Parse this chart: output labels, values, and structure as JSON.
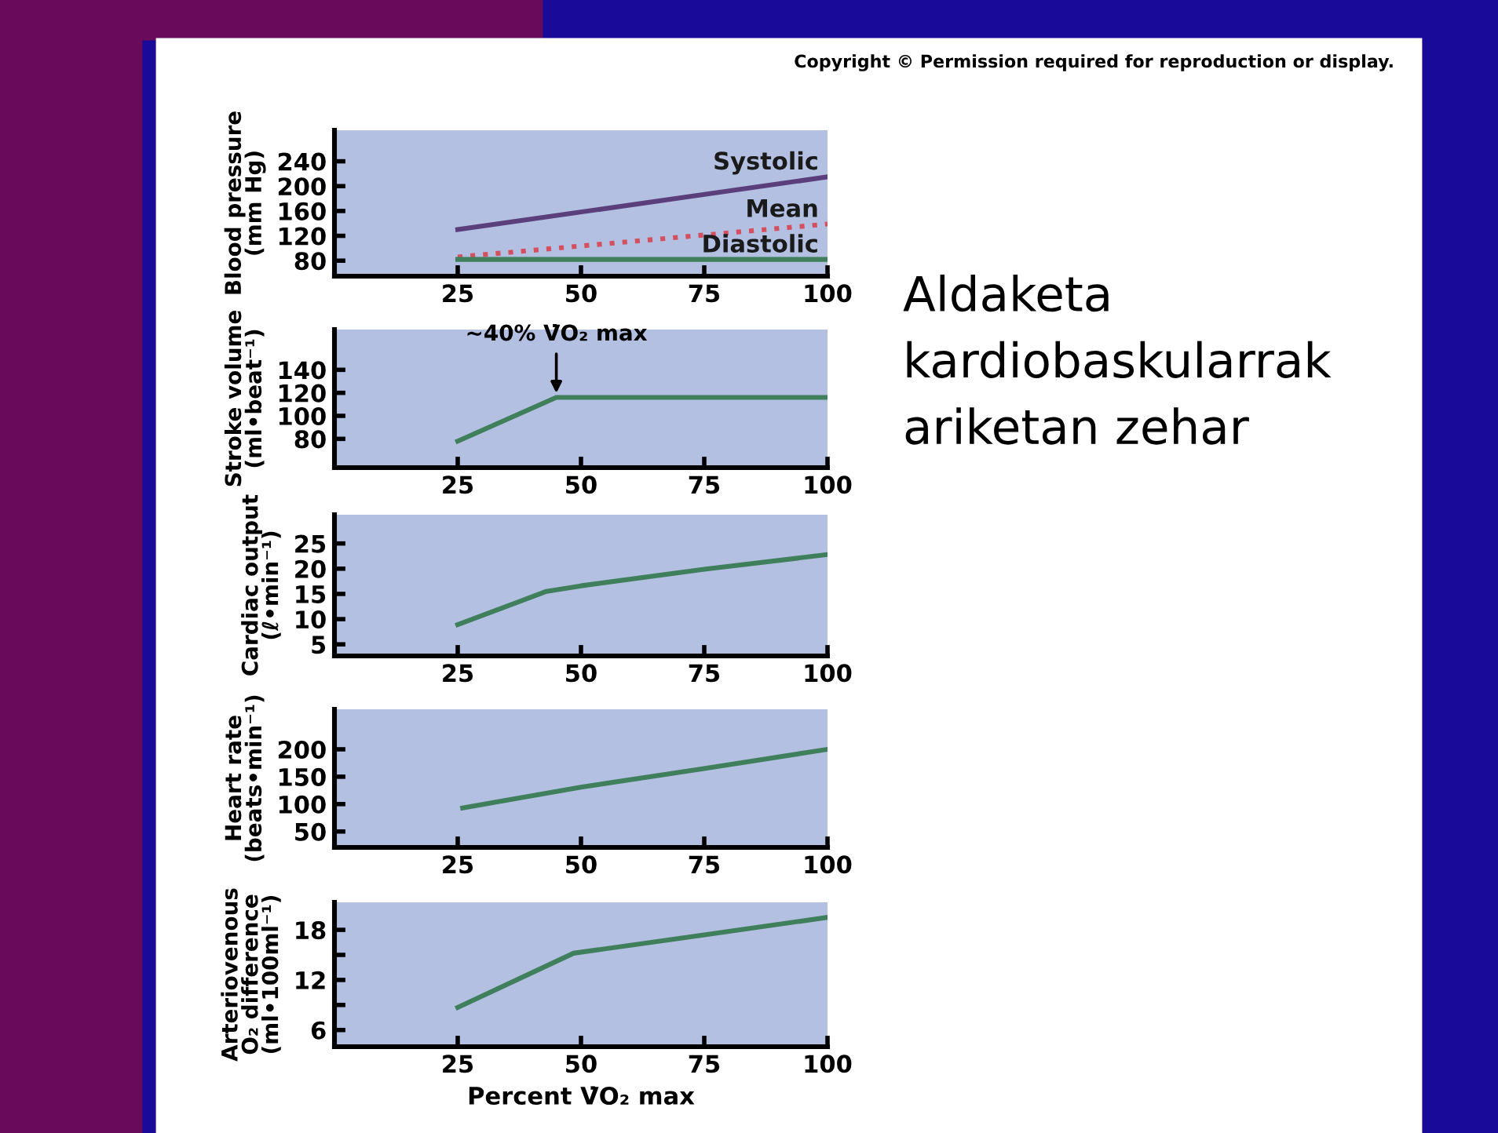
{
  "chart_data": [
    {
      "type": "line",
      "xlim": [
        0,
        100
      ],
      "xticks": [
        25,
        50,
        75,
        100
      ],
      "ylim": [
        55,
        290
      ],
      "yticks": [
        80,
        120,
        160,
        200,
        240
      ],
      "ylabel": "Blood pressure\n(mm Hg)",
      "grid": false,
      "legend": false,
      "series": [
        {
          "name": "Systolic",
          "color": "#5b3f7c",
          "line_style": "solid",
          "x": [
            25,
            100
          ],
          "values": [
            130,
            215
          ]
        },
        {
          "name": "Mean",
          "color": "#d4505e",
          "line_style": "dotted",
          "x": [
            25,
            100
          ],
          "values": [
            86,
            139
          ]
        },
        {
          "name": "Diastolic",
          "color": "#3f7f5c",
          "line_style": "solid",
          "x": [
            25,
            100
          ],
          "values": [
            82,
            82
          ]
        }
      ]
    },
    {
      "type": "line",
      "xlim": [
        0,
        100
      ],
      "xticks": [
        25,
        50,
        75,
        100
      ],
      "ylim": [
        55,
        175
      ],
      "yticks": [
        80,
        100,
        120,
        140
      ],
      "ylabel": "Stroke volume\n(ml•beat⁻¹)",
      "grid": false,
      "legend": false,
      "series": [
        {
          "color": "#3f7f5c",
          "x": [
            25,
            45,
            100
          ],
          "values": [
            78,
            116,
            116
          ]
        }
      ],
      "annotations": [
        {
          "text": "~40% V̇O₂ max",
          "x": 45,
          "y": 116
        }
      ]
    },
    {
      "type": "line",
      "xlim": [
        0,
        100
      ],
      "xticks": [
        25,
        50,
        75,
        100
      ],
      "ylim": [
        2.7,
        30.7
      ],
      "yticks": [
        5,
        10,
        15,
        20,
        25
      ],
      "ylabel": "Cardiac output\n(ℓ•min⁻¹)",
      "grid": false,
      "legend": false,
      "series": [
        {
          "color": "#3f7f5c",
          "x": [
            25,
            43,
            50,
            75,
            100
          ],
          "values": [
            8.9,
            15.5,
            16.6,
            19.9,
            22.8
          ]
        }
      ]
    },
    {
      "type": "line",
      "xlim": [
        0,
        100
      ],
      "xticks": [
        25,
        50,
        75,
        100
      ],
      "ylim": [
        21,
        273
      ],
      "yticks": [
        50,
        100,
        150,
        200
      ],
      "ylabel": "Heart rate\n(beats•min⁻¹)",
      "grid": false,
      "legend": false,
      "series": [
        {
          "color": "#3f7f5c",
          "x": [
            26,
            50,
            75,
            100
          ],
          "values": [
            93,
            131,
            165,
            200
          ]
        }
      ]
    },
    {
      "type": "line",
      "xlim": [
        0,
        100
      ],
      "xticks": [
        25,
        50,
        75,
        100
      ],
      "ylim": [
        4,
        21.3
      ],
      "yticks": [
        6,
        {
          "value": 9,
          "label": null
        },
        12,
        {
          "value": 15,
          "label": null
        },
        18
      ],
      "ylabel": "Arteriovenous\nO₂ difference\n(ml•100ml⁻¹)",
      "xlabel": "Percent V̇O₂ max",
      "grid": false,
      "legend": false,
      "series": [
        {
          "color": "#3f7f5c",
          "x": [
            25,
            48.5,
            75,
            100
          ],
          "values": [
            8.7,
            15.2,
            17.4,
            19.5
          ]
        }
      ]
    },
    {
      "type": "other",
      "title": "Aldaketa\nkardiobaskularrak\nariketan zehar",
      "annotations": [
        "Copyright © Permission required for reproduction or display."
      ]
    }
  ]
}
